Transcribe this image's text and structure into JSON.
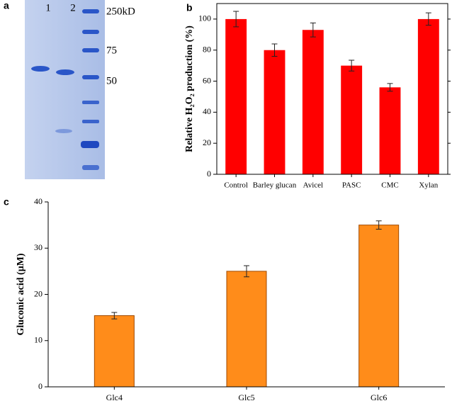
{
  "gel": {
    "panel": "a",
    "lanes": [
      "1",
      "2"
    ],
    "markers": [
      "250kD",
      "75",
      "50"
    ]
  },
  "chart_data": [
    {
      "type": "bar",
      "panel": "b",
      "y_label": "Relative H₂O₂ production (%)",
      "categories": [
        "Control",
        "Barley glucan",
        "Avicel",
        "PASC",
        "CMC",
        "Xylan"
      ],
      "values": [
        100,
        80,
        93,
        70,
        56,
        100
      ],
      "errors": [
        5,
        4,
        4.5,
        3.5,
        2.5,
        4
      ],
      "color": "#ff0000",
      "ylim": [
        0,
        110
      ],
      "yticks": [
        0,
        20,
        40,
        60,
        80,
        100
      ]
    },
    {
      "type": "bar",
      "panel": "c",
      "y_label": "Gluconic acid (μM)",
      "categories": [
        "Glc4",
        "Glc5",
        "Glc6"
      ],
      "values": [
        15.4,
        25,
        35
      ],
      "errors": [
        0.7,
        1.2,
        0.9
      ],
      "color": "#ff8c1a",
      "ylim": [
        0,
        40
      ],
      "yticks": [
        0,
        10,
        20,
        30,
        40
      ]
    }
  ]
}
